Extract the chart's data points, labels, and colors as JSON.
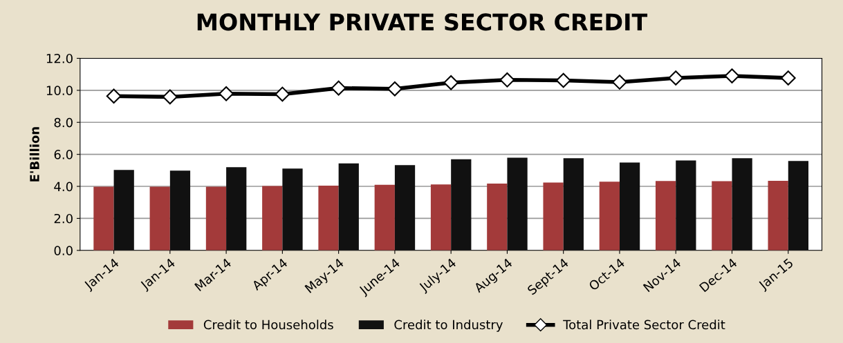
{
  "chart_data": {
    "type": "bar",
    "title": "MONTHLY PRIVATE SECTOR CREDIT",
    "ylabel": "E'Billion",
    "categories": [
      "Jan-14",
      "Jan-14",
      "Mar-14",
      "Apr-14",
      "May-14",
      "June-14",
      "July-14",
      "Aug-14",
      "Sept-14",
      "Oct-14",
      "Nov-14",
      "Dec-14",
      "Jan-15"
    ],
    "series": [
      {
        "name": "Credit to Households",
        "color": "#a33a3a",
        "values": [
          3.98,
          3.98,
          3.98,
          4.02,
          4.05,
          4.1,
          4.12,
          4.17,
          4.24,
          4.29,
          4.34,
          4.32,
          4.35
        ]
      },
      {
        "name": "Credit to Industry",
        "color": "#111111",
        "values": [
          5.03,
          4.98,
          5.2,
          5.11,
          5.43,
          5.33,
          5.69,
          5.79,
          5.76,
          5.49,
          5.62,
          5.76,
          5.59
        ]
      },
      {
        "name": "Total Private Sector Credit",
        "type": "line",
        "color": "#000000",
        "marker": "diamond",
        "values": [
          9.64,
          9.59,
          9.79,
          9.76,
          10.14,
          10.09,
          10.48,
          10.65,
          10.62,
          10.51,
          10.77,
          10.9,
          10.77
        ]
      }
    ],
    "ylim": [
      0,
      12
    ],
    "yticks": [
      {
        "value": 0,
        "label": "0.0"
      },
      {
        "value": 2,
        "label": "2.0"
      },
      {
        "value": 4,
        "label": "4.0"
      },
      {
        "value": 6,
        "label": "6.0"
      },
      {
        "value": 8,
        "label": "8.0"
      },
      {
        "value": 10,
        "label": "10.0"
      },
      {
        "value": 12,
        "label": "12.0"
      }
    ],
    "grid": "y",
    "legend": "bottom"
  }
}
